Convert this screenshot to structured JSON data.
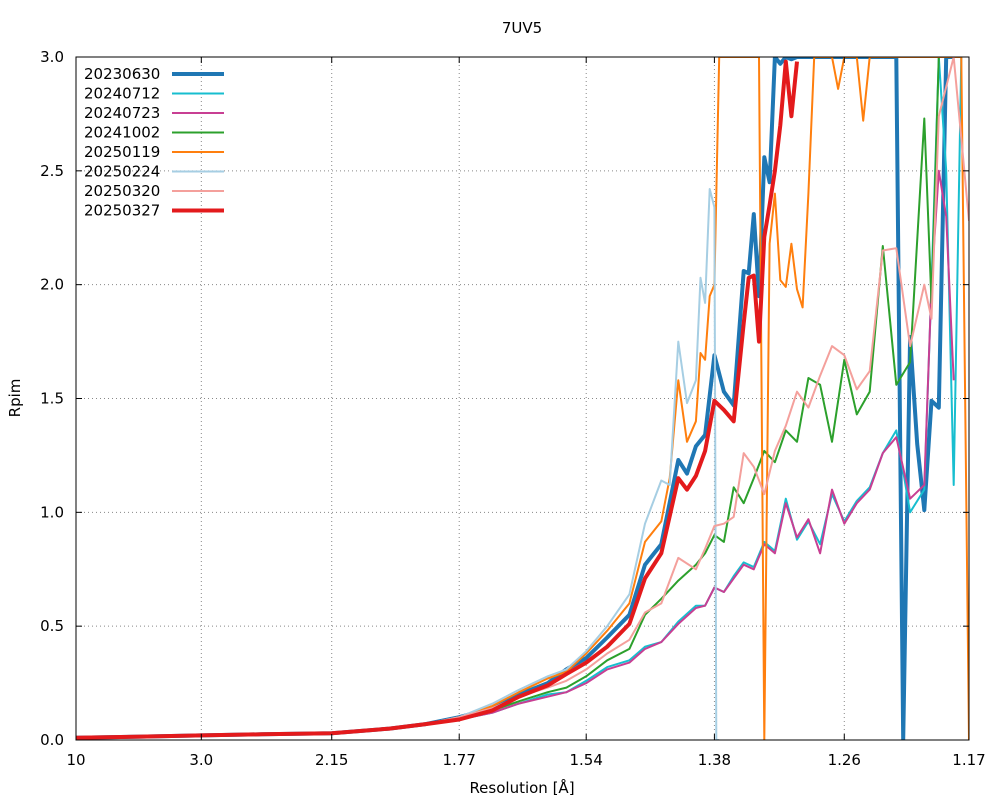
{
  "chart_data": {
    "type": "line",
    "title": "7UV5",
    "xlabel": "Resolution [Å]",
    "ylabel": "Rpim",
    "x_scale": "1/d^2",
    "x_ticks": [
      "10",
      "3.0",
      "2.15",
      "1.77",
      "1.54",
      "1.38",
      "1.26",
      "1.17"
    ],
    "x_range_A": [
      10,
      1.17
    ],
    "ylim": [
      0,
      3.0
    ],
    "y_ticks": [
      "0.0",
      "0.5",
      "1.0",
      "1.5",
      "2.0",
      "2.5",
      "3.0"
    ],
    "grid": true,
    "legend_position": "top-left",
    "series": [
      {
        "name": "20230630",
        "color": "#1f77b4",
        "width": 4,
        "x": [
          10,
          4,
          3.0,
          2.5,
          2.15,
          1.95,
          1.85,
          1.77,
          1.7,
          1.65,
          1.6,
          1.57,
          1.54,
          1.51,
          1.48,
          1.46,
          1.44,
          1.42,
          1.41,
          1.4,
          1.39,
          1.38,
          1.37,
          1.36,
          1.35,
          1.345,
          1.34,
          1.335,
          1.33,
          1.325,
          1.32,
          1.315,
          1.31,
          1.305,
          1.3,
          1.295,
          1.29,
          1.22,
          1.215,
          1.21,
          1.205,
          1.2,
          1.195,
          1.19,
          1.185,
          1.18
        ],
        "y": [
          0.01,
          0.015,
          0.02,
          0.025,
          0.03,
          0.05,
          0.07,
          0.1,
          0.14,
          0.2,
          0.25,
          0.31,
          0.36,
          0.45,
          0.55,
          0.77,
          0.86,
          1.23,
          1.17,
          1.29,
          1.34,
          1.69,
          1.53,
          1.47,
          2.06,
          2.05,
          2.31,
          1.95,
          2.56,
          2.45,
          3.0,
          2.97,
          3.0,
          2.99,
          3.0,
          3.0,
          3.0,
          3.0,
          0.0,
          1.77,
          1.3,
          1.01,
          1.49,
          1.46,
          3.0,
          3.0
        ]
      },
      {
        "name": "20240712",
        "color": "#17becf",
        "width": 2,
        "x": [
          10,
          4,
          3.0,
          2.5,
          2.15,
          1.95,
          1.85,
          1.77,
          1.7,
          1.65,
          1.6,
          1.57,
          1.54,
          1.51,
          1.48,
          1.46,
          1.44,
          1.42,
          1.4,
          1.39,
          1.38,
          1.37,
          1.36,
          1.35,
          1.34,
          1.33,
          1.32,
          1.31,
          1.3,
          1.29,
          1.28,
          1.27,
          1.26,
          1.25,
          1.24,
          1.23,
          1.22,
          1.21,
          1.2,
          1.195,
          1.19,
          1.185,
          1.18,
          1.175
        ],
        "y": [
          0.01,
          0.015,
          0.02,
          0.025,
          0.03,
          0.05,
          0.07,
          0.09,
          0.12,
          0.16,
          0.2,
          0.21,
          0.26,
          0.32,
          0.35,
          0.41,
          0.43,
          0.52,
          0.59,
          0.59,
          0.67,
          0.65,
          0.72,
          0.78,
          0.76,
          0.87,
          0.83,
          1.06,
          0.88,
          0.96,
          0.86,
          1.08,
          0.96,
          1.05,
          1.11,
          1.26,
          1.36,
          1.0,
          1.1,
          2.0,
          3.0,
          2.5,
          1.12,
          3.0
        ]
      },
      {
        "name": "20240723",
        "color": "#c83f93",
        "width": 2,
        "x": [
          10,
          4,
          3.0,
          2.5,
          2.15,
          1.95,
          1.85,
          1.77,
          1.7,
          1.65,
          1.6,
          1.57,
          1.54,
          1.51,
          1.48,
          1.46,
          1.44,
          1.42,
          1.4,
          1.39,
          1.38,
          1.37,
          1.36,
          1.35,
          1.34,
          1.33,
          1.32,
          1.31,
          1.3,
          1.29,
          1.28,
          1.27,
          1.26,
          1.25,
          1.24,
          1.23,
          1.22,
          1.21,
          1.2,
          1.195,
          1.19,
          1.185,
          1.18
        ],
        "y": [
          0.01,
          0.015,
          0.02,
          0.025,
          0.03,
          0.05,
          0.07,
          0.09,
          0.12,
          0.16,
          0.19,
          0.21,
          0.25,
          0.31,
          0.34,
          0.4,
          0.43,
          0.51,
          0.58,
          0.59,
          0.67,
          0.65,
          0.71,
          0.77,
          0.75,
          0.86,
          0.82,
          1.04,
          0.89,
          0.97,
          0.82,
          1.1,
          0.95,
          1.04,
          1.1,
          1.26,
          1.33,
          1.06,
          1.12,
          2.0,
          2.5,
          2.3,
          1.58
        ]
      },
      {
        "name": "20241002",
        "color": "#2ca02c",
        "width": 2,
        "x": [
          10,
          4,
          3.0,
          2.5,
          2.15,
          1.95,
          1.85,
          1.77,
          1.7,
          1.65,
          1.6,
          1.57,
          1.54,
          1.51,
          1.48,
          1.46,
          1.44,
          1.42,
          1.4,
          1.39,
          1.38,
          1.37,
          1.36,
          1.35,
          1.34,
          1.33,
          1.32,
          1.31,
          1.3,
          1.29,
          1.28,
          1.27,
          1.26,
          1.25,
          1.24,
          1.23,
          1.22,
          1.21,
          1.2,
          1.195,
          1.19
        ],
        "y": [
          0.01,
          0.015,
          0.02,
          0.025,
          0.03,
          0.05,
          0.07,
          0.09,
          0.13,
          0.17,
          0.21,
          0.23,
          0.28,
          0.35,
          0.4,
          0.55,
          0.62,
          0.7,
          0.77,
          0.82,
          0.9,
          0.87,
          1.11,
          1.04,
          1.15,
          1.27,
          1.22,
          1.36,
          1.31,
          1.59,
          1.56,
          1.31,
          1.67,
          1.43,
          1.53,
          2.17,
          1.56,
          1.66,
          2.73,
          1.92,
          3.0
        ]
      },
      {
        "name": "20250119",
        "color": "#ff7f0e",
        "width": 2,
        "x": [
          10,
          4,
          3.0,
          2.5,
          2.15,
          1.95,
          1.85,
          1.77,
          1.7,
          1.65,
          1.6,
          1.57,
          1.54,
          1.51,
          1.48,
          1.46,
          1.44,
          1.43,
          1.42,
          1.41,
          1.4,
          1.395,
          1.39,
          1.385,
          1.38,
          1.375,
          1.37,
          1.365,
          1.36,
          1.355,
          1.35,
          1.345,
          1.34,
          1.335,
          1.33,
          1.325,
          1.32,
          1.315,
          1.31,
          1.305,
          1.3,
          1.295,
          1.29,
          1.285,
          1.28,
          1.275,
          1.27,
          1.265,
          1.26,
          1.255,
          1.25,
          1.245,
          1.24,
          1.235,
          1.23,
          1.225,
          1.22,
          1.21,
          1.2,
          1.19,
          1.18,
          1.175,
          1.17
        ],
        "y": [
          0.01,
          0.015,
          0.02,
          0.025,
          0.03,
          0.05,
          0.07,
          0.1,
          0.15,
          0.21,
          0.27,
          0.3,
          0.38,
          0.48,
          0.6,
          0.87,
          0.96,
          1.15,
          1.58,
          1.31,
          1.4,
          1.7,
          1.67,
          1.95,
          2.0,
          3.0,
          3.0,
          3.0,
          3.0,
          3.0,
          3.0,
          3.0,
          3.0,
          3.0,
          0.0,
          2.18,
          2.4,
          2.02,
          1.99,
          2.18,
          1.98,
          1.9,
          2.4,
          3.0,
          3.0,
          3.0,
          3.0,
          2.86,
          3.0,
          3.0,
          3.0,
          2.72,
          3.0,
          3.0,
          3.0,
          3.0,
          3.0,
          3.0,
          3.0,
          3.0,
          3.0,
          3.0,
          0.0
        ]
      },
      {
        "name": "20250224",
        "color": "#a6cee3",
        "width": 2,
        "x": [
          10,
          4,
          3.0,
          2.5,
          2.15,
          1.95,
          1.85,
          1.77,
          1.7,
          1.65,
          1.6,
          1.57,
          1.54,
          1.51,
          1.48,
          1.46,
          1.44,
          1.43,
          1.42,
          1.41,
          1.4,
          1.395,
          1.39,
          1.385,
          1.38,
          1.378,
          1.375
        ],
        "y": [
          0.01,
          0.015,
          0.02,
          0.025,
          0.03,
          0.05,
          0.07,
          0.1,
          0.16,
          0.22,
          0.28,
          0.31,
          0.39,
          0.5,
          0.64,
          0.95,
          1.14,
          1.12,
          1.75,
          1.48,
          1.58,
          2.03,
          1.92,
          2.42,
          2.34,
          0.0,
          0.0
        ]
      },
      {
        "name": "20250320",
        "color": "#f4a09c",
        "width": 2,
        "x": [
          10,
          4,
          3.0,
          2.5,
          2.15,
          1.95,
          1.85,
          1.77,
          1.7,
          1.65,
          1.6,
          1.57,
          1.54,
          1.51,
          1.48,
          1.46,
          1.44,
          1.42,
          1.4,
          1.39,
          1.38,
          1.37,
          1.36,
          1.35,
          1.34,
          1.33,
          1.32,
          1.31,
          1.3,
          1.29,
          1.28,
          1.27,
          1.26,
          1.25,
          1.24,
          1.23,
          1.22,
          1.21,
          1.2,
          1.195,
          1.19,
          1.18,
          1.17
        ],
        "y": [
          0.01,
          0.015,
          0.02,
          0.025,
          0.03,
          0.05,
          0.07,
          0.1,
          0.14,
          0.19,
          0.23,
          0.26,
          0.31,
          0.38,
          0.44,
          0.56,
          0.6,
          0.8,
          0.75,
          0.84,
          0.94,
          0.95,
          0.98,
          1.26,
          1.2,
          1.08,
          1.27,
          1.38,
          1.53,
          1.46,
          1.6,
          1.73,
          1.69,
          1.54,
          1.62,
          2.15,
          2.16,
          1.73,
          2.0,
          1.85,
          2.74,
          3.0,
          2.28
        ]
      },
      {
        "name": "20250327",
        "color": "#e31a1c",
        "width": 4,
        "x": [
          10,
          4,
          3.0,
          2.5,
          2.15,
          1.95,
          1.85,
          1.77,
          1.7,
          1.65,
          1.6,
          1.57,
          1.54,
          1.51,
          1.48,
          1.46,
          1.44,
          1.42,
          1.41,
          1.4,
          1.39,
          1.38,
          1.37,
          1.36,
          1.35,
          1.345,
          1.34,
          1.335,
          1.33,
          1.325,
          1.32,
          1.315,
          1.31,
          1.305,
          1.3
        ],
        "y": [
          0.01,
          0.015,
          0.02,
          0.025,
          0.03,
          0.05,
          0.07,
          0.09,
          0.13,
          0.19,
          0.24,
          0.29,
          0.34,
          0.41,
          0.51,
          0.71,
          0.82,
          1.15,
          1.1,
          1.16,
          1.27,
          1.49,
          1.45,
          1.4,
          1.83,
          2.03,
          2.04,
          1.75,
          2.21,
          2.35,
          2.5,
          2.7,
          2.98,
          2.74,
          2.98
        ]
      }
    ]
  }
}
